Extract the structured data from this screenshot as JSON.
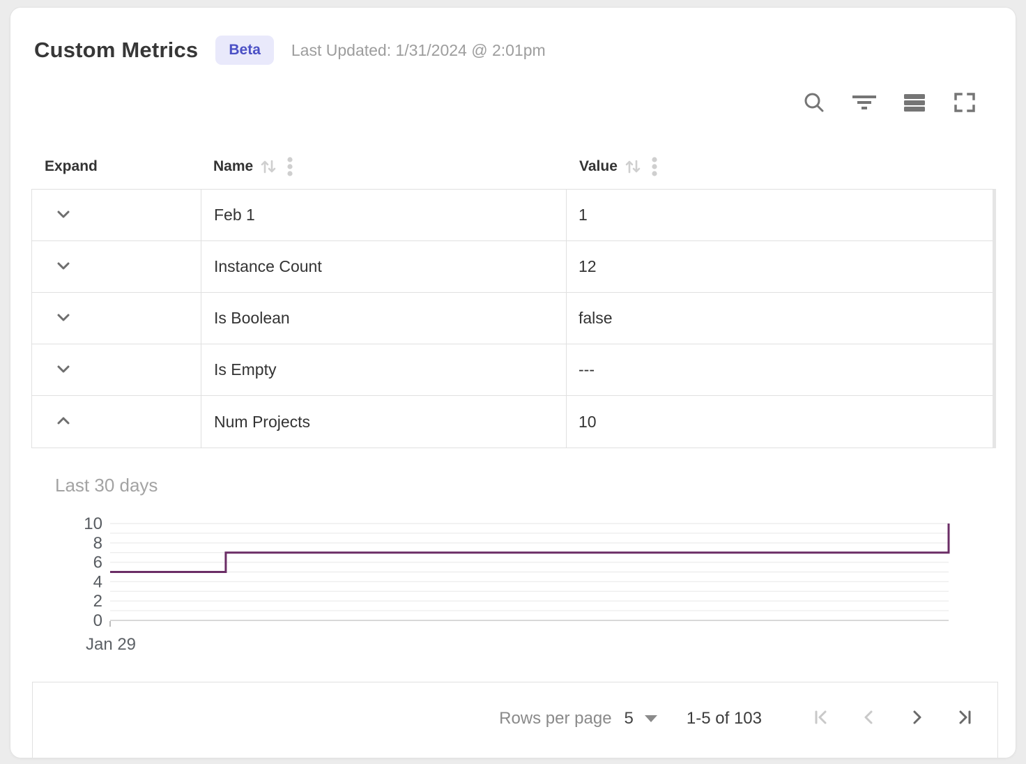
{
  "header": {
    "title": "Custom Metrics",
    "badge": "Beta",
    "last_updated": "Last Updated: 1/31/2024 @ 2:01pm"
  },
  "toolbar": {
    "icons": [
      "search-icon",
      "filter-icon",
      "density-icon",
      "fullscreen-icon"
    ]
  },
  "table": {
    "columns": [
      {
        "label": "Expand"
      },
      {
        "label": "Name"
      },
      {
        "label": "Value"
      }
    ],
    "rows": [
      {
        "name": "Feb 1",
        "value": "1",
        "expanded": false
      },
      {
        "name": "Instance Count",
        "value": "12",
        "expanded": false
      },
      {
        "name": "Is Boolean",
        "value": "false",
        "expanded": false
      },
      {
        "name": "Is Empty",
        "value": "---",
        "expanded": false
      },
      {
        "name": "Num Projects",
        "value": "10",
        "expanded": true
      }
    ]
  },
  "detail": {
    "label": "Last 30 days"
  },
  "chart_data": {
    "type": "line",
    "step": true,
    "title": "Last 30 days",
    "series": [
      {
        "name": "Num Projects",
        "values": [
          5,
          5,
          5,
          5,
          7,
          7,
          7,
          7,
          7,
          7,
          7,
          7,
          7,
          7,
          7,
          7,
          7,
          7,
          7,
          7,
          7,
          7,
          7,
          7,
          7,
          7,
          7,
          7,
          7,
          10
        ]
      }
    ],
    "x_tick_labels": [
      "Jan 29"
    ],
    "y_ticks": [
      0,
      2,
      4,
      6,
      8,
      10
    ],
    "ylim": [
      0,
      10
    ],
    "grid": true,
    "line_color": "#6b2d66",
    "grid_color": "#eeeeee",
    "axis_color": "#d8d8d8",
    "tick_label_color": "#575b60"
  },
  "footer": {
    "rows_per_page_label": "Rows per page",
    "rows_per_page_value": "5",
    "range_label": "1-5 of 103",
    "pagination": {
      "first_disabled": true,
      "prev_disabled": true,
      "next_disabled": false,
      "last_disabled": false
    }
  },
  "colors": {
    "badge_bg": "#e9e9fb",
    "badge_text": "#4b50c5",
    "chart_line": "#6b2d66"
  }
}
